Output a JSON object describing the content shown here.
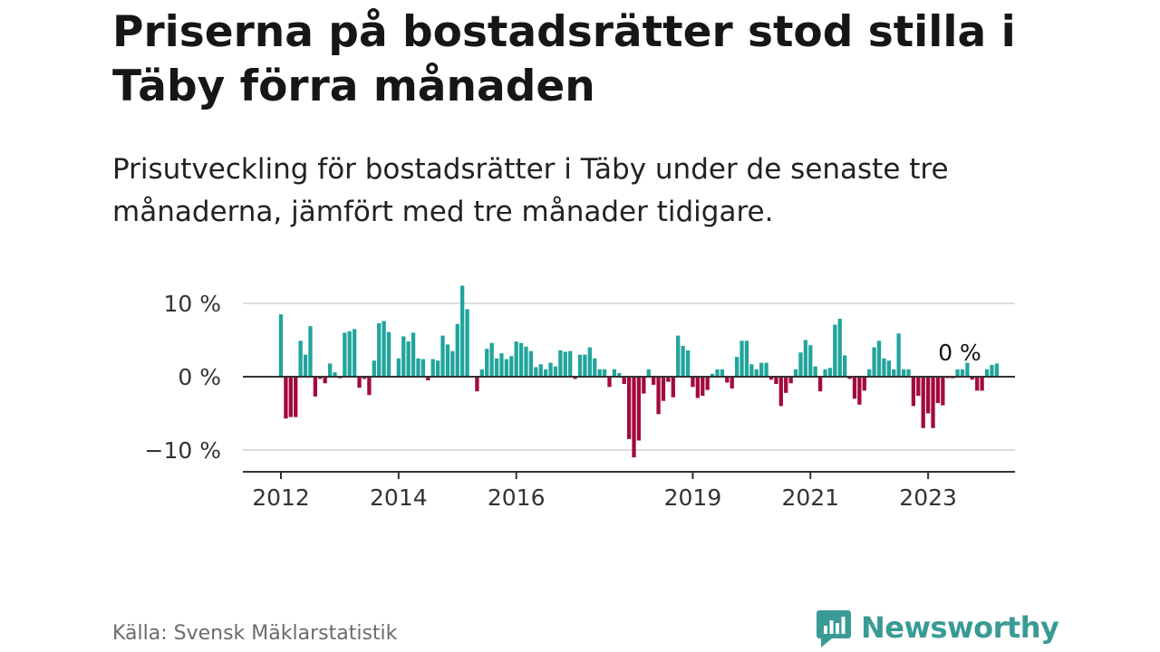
{
  "title": "Priserna på bostadsrätter stod stilla i Täby förra månaden",
  "subtitle": "Prisutveckling för bostadsrätter i Täby under de senaste tre månaderna, jämfört med tre månader tidigare.",
  "source": "Källa: Svensk Mäklarstatistik",
  "logo": {
    "text": "Newsworthy"
  },
  "colors": {
    "positive": "#21a59c",
    "negative": "#a3093f",
    "grid": "#dddddd",
    "zero": "#333333",
    "logo": "#3a9a95"
  },
  "chart_data": {
    "type": "bar",
    "title": "Priserna på bostadsrätter stod stilla i Täby förra månaden",
    "ylabel": "",
    "xlabel": "",
    "ylim": [
      -12.5,
      13.5
    ],
    "y_ticks": [
      {
        "value": 10,
        "label": "10 %"
      },
      {
        "value": 0,
        "label": "0 %"
      },
      {
        "value": -10,
        "label": "−10 %"
      }
    ],
    "x_ticks": [
      {
        "index": 0,
        "label": "2012"
      },
      {
        "index": 24,
        "label": "2014"
      },
      {
        "index": 48,
        "label": "2016"
      },
      {
        "index": 84,
        "label": "2019"
      },
      {
        "index": 108,
        "label": "2021"
      },
      {
        "index": 132,
        "label": "2023"
      }
    ],
    "annotation": {
      "index": 141,
      "label": "0 %"
    },
    "start": "2012-01",
    "values": [
      8.5,
      -5.7,
      -5.5,
      -5.5,
      4.9,
      3.0,
      6.9,
      -2.7,
      -0.3,
      -0.9,
      1.8,
      0.6,
      -0.2,
      6.0,
      6.2,
      6.5,
      -1.5,
      -0.3,
      -2.5,
      2.2,
      7.3,
      7.6,
      6.1,
      -0.1,
      2.5,
      5.5,
      4.8,
      6.0,
      2.5,
      2.4,
      -0.5,
      2.4,
      2.2,
      5.6,
      4.4,
      3.5,
      7.2,
      12.4,
      9.2,
      -0.1,
      -2.0,
      1.0,
      3.8,
      4.6,
      2.5,
      3.2,
      2.4,
      2.8,
      4.8,
      4.6,
      4.1,
      3.5,
      1.3,
      1.7,
      1.0,
      1.9,
      1.4,
      3.6,
      3.4,
      3.5,
      -0.3,
      3.0,
      3.0,
      4.0,
      2.5,
      1.0,
      1.0,
      -1.4,
      1.0,
      0.5,
      -1.0,
      -8.5,
      -11.0,
      -8.7,
      -2.3,
      1.0,
      -1.1,
      -5.1,
      -3.3,
      -0.7,
      -2.8,
      5.6,
      4.2,
      3.6,
      -1.4,
      -2.9,
      -2.6,
      -1.8,
      0.4,
      1.0,
      1.0,
      -0.8,
      -1.6,
      2.7,
      4.9,
      4.9,
      1.7,
      1.0,
      1.9,
      1.9,
      -0.4,
      -1.0,
      -4.0,
      -2.2,
      -0.9,
      1.0,
      3.3,
      5.0,
      4.3,
      1.4,
      -2.0,
      1.0,
      1.2,
      7.1,
      7.9,
      2.9,
      -0.3,
      -3.0,
      -3.8,
      -1.9,
      1.0,
      4.0,
      4.9,
      2.5,
      2.2,
      1.0,
      5.9,
      1.0,
      1.0,
      -4.0,
      -2.6,
      -7.0,
      -5.0,
      -7.0,
      -3.6,
      -3.9,
      -0.2,
      -0.2,
      1.0,
      1.0,
      1.9,
      -0.4,
      -1.9,
      -1.9,
      1.0,
      1.6,
      1.8
    ]
  }
}
